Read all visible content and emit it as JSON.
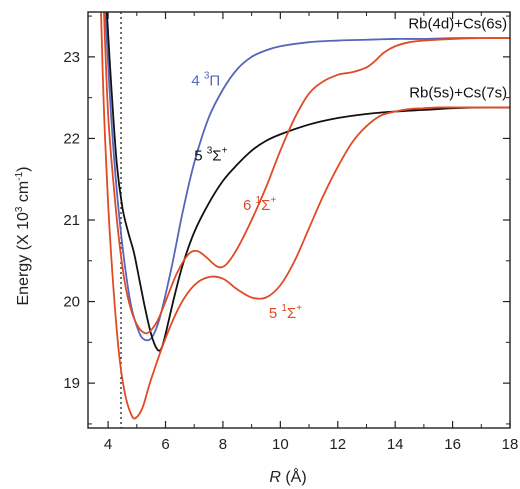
{
  "chart_data": {
    "type": "line",
    "title": "",
    "xlabel": "R (Å)",
    "ylabel": "Energy (X 10³ cm⁻¹)",
    "xlim": [
      3.3,
      18
    ],
    "ylim": [
      18.45,
      23.55
    ],
    "xticks": [
      4,
      6,
      8,
      10,
      12,
      14,
      16,
      18
    ],
    "yticks": [
      19,
      20,
      21,
      22,
      23
    ],
    "x_tick_labels": [
      "4",
      "6",
      "8",
      "10",
      "12",
      "14",
      "16",
      "18"
    ],
    "y_tick_labels": [
      "19",
      "20",
      "21",
      "22",
      "23"
    ],
    "grid": false,
    "legend": "none",
    "vline": {
      "x": 4.45,
      "style": "dotted",
      "color": "#222222"
    },
    "asymptote_labels": [
      {
        "text": "Rb(4d)+Cs(6s)",
        "x": 17.9,
        "y": 23.35
      },
      {
        "text": "Rb(5s)+Cs(7s)",
        "x": 17.9,
        "y": 22.5
      }
    ],
    "series": [
      {
        "name": "4 ³Π",
        "color": "#5566bb",
        "label_parts": {
          "main": "4 ",
          "sup": "3",
          "tail": "Π"
        },
        "label_pos": {
          "x": 6.9,
          "y": 22.65
        },
        "x": [
          3.9,
          4.05,
          4.2,
          4.4,
          4.6,
          4.8,
          5.0,
          5.2,
          5.5,
          5.8,
          6.2,
          6.6,
          7.0,
          7.5,
          8.0,
          8.5,
          9.0,
          9.5,
          10.0,
          11.0,
          12.0,
          13.0,
          14.0,
          15.0,
          16.0,
          17.0,
          18.0
        ],
        "values": [
          23.6,
          22.6,
          21.8,
          21.0,
          20.4,
          19.95,
          19.7,
          19.55,
          19.55,
          19.8,
          20.4,
          21.1,
          21.7,
          22.25,
          22.6,
          22.85,
          23.0,
          23.08,
          23.13,
          23.18,
          23.2,
          23.21,
          23.22,
          23.22,
          23.23,
          23.23,
          23.23
        ]
      },
      {
        "name": "5 ³Σ⁺",
        "color": "#111111",
        "label_parts": {
          "main": "5 ",
          "sup": "3",
          "tail": "Σ",
          "tail_sup": "+"
        },
        "label_pos": {
          "x": 7.0,
          "y": 21.73
        },
        "x": [
          3.95,
          4.1,
          4.3,
          4.5,
          4.7,
          4.9,
          5.1,
          5.3,
          5.5,
          5.7,
          5.85,
          6.0,
          6.3,
          6.6,
          7.0,
          7.5,
          8.0,
          8.5,
          9.0,
          9.5,
          10.0,
          11.0,
          12.0,
          13.0,
          14.0,
          15.0,
          16.0,
          17.0,
          18.0
        ],
        "values": [
          23.6,
          22.7,
          21.7,
          21.15,
          20.85,
          20.6,
          20.25,
          19.9,
          19.6,
          19.42,
          19.42,
          19.6,
          20.05,
          20.45,
          20.85,
          21.2,
          21.48,
          21.68,
          21.85,
          21.97,
          22.05,
          22.17,
          22.25,
          22.3,
          22.33,
          22.35,
          22.37,
          22.38,
          22.38
        ]
      },
      {
        "name": "6 ¹Σ⁺",
        "color": "#e04a25",
        "label_parts": {
          "main": "6 ",
          "sup": "1",
          "tail": "Σ",
          "tail_sup": "+"
        },
        "label_pos": {
          "x": 8.7,
          "y": 21.12
        },
        "x": [
          3.85,
          4.0,
          4.2,
          4.4,
          4.6,
          4.8,
          5.0,
          5.2,
          5.4,
          5.7,
          6.0,
          6.4,
          6.8,
          7.1,
          7.4,
          7.8,
          8.1,
          8.5,
          9.0,
          9.5,
          10.0,
          10.5,
          11.0,
          11.5,
          12.0,
          12.3,
          12.6,
          13.0,
          13.3,
          13.6,
          14.0,
          14.5,
          15.0,
          16.0,
          17.0,
          18.0
        ],
        "values": [
          23.6,
          22.3,
          21.4,
          20.7,
          20.2,
          19.9,
          19.72,
          19.63,
          19.62,
          19.75,
          20.0,
          20.35,
          20.58,
          20.62,
          20.55,
          20.43,
          20.45,
          20.65,
          21.0,
          21.4,
          21.85,
          22.25,
          22.55,
          22.7,
          22.78,
          22.8,
          22.82,
          22.87,
          22.95,
          23.05,
          23.13,
          23.18,
          23.2,
          23.22,
          23.23,
          23.23
        ]
      },
      {
        "name": "5 ¹Σ⁺",
        "color": "#e04a25",
        "label_parts": {
          "main": "5 ",
          "sup": "1",
          "tail": "Σ",
          "tail_sup": "+"
        },
        "label_pos": {
          "x": 9.6,
          "y": 19.8
        },
        "x": [
          3.75,
          3.85,
          4.0,
          4.2,
          4.4,
          4.6,
          4.8,
          4.95,
          5.2,
          5.5,
          6.0,
          6.5,
          7.0,
          7.5,
          8.0,
          8.5,
          9.0,
          9.5,
          10.0,
          10.5,
          11.0,
          11.5,
          12.0,
          12.5,
          13.0,
          13.5,
          14.0,
          14.5,
          15.0,
          15.5,
          16.0,
          17.0,
          18.0
        ],
        "values": [
          23.6,
          22.4,
          21.2,
          20.1,
          19.3,
          18.85,
          18.62,
          18.57,
          18.7,
          19.05,
          19.55,
          19.95,
          20.2,
          20.3,
          20.28,
          20.15,
          20.05,
          20.05,
          20.2,
          20.5,
          20.9,
          21.3,
          21.65,
          21.95,
          22.15,
          22.28,
          22.33,
          22.36,
          22.37,
          22.38,
          22.38,
          22.38,
          22.38
        ]
      }
    ]
  }
}
